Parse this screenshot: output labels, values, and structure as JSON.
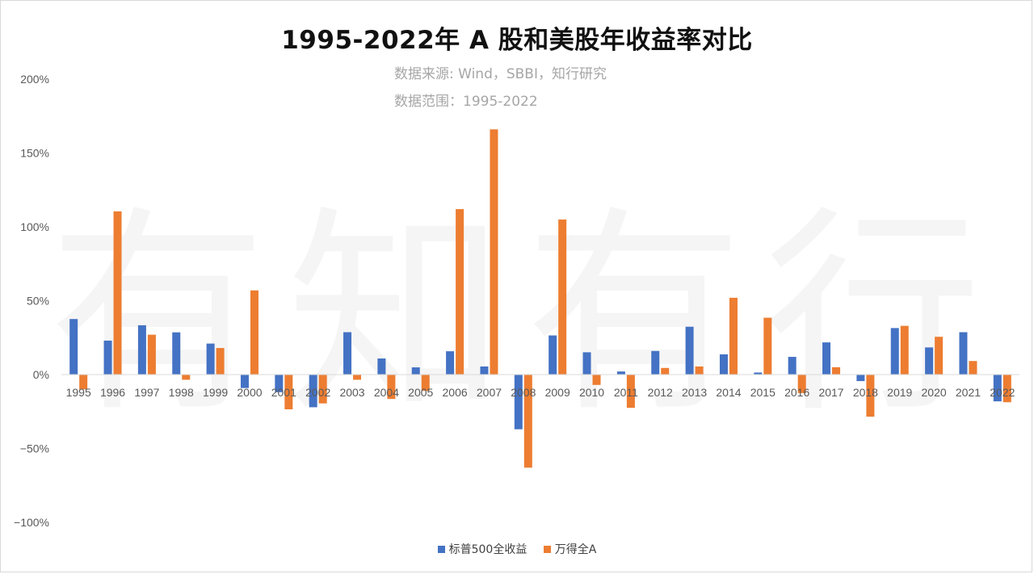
{
  "title": "1995-2022年 A 股和美股年收益率对比",
  "subtitle_source": "数据来源: Wind，SBBI，知行研究",
  "subtitle_range": "数据范围：1995-2022",
  "watermark": "有知有行",
  "colors": {
    "series1": "#4472c4",
    "series2": "#ed7d31",
    "axis": "#d9d9d9",
    "text": "#595959"
  },
  "chart_data": {
    "type": "bar",
    "categories": [
      "1995",
      "1996",
      "1997",
      "1998",
      "1999",
      "2000",
      "2001",
      "2002",
      "2003",
      "2004",
      "2005",
      "2006",
      "2007",
      "2008",
      "2009",
      "2010",
      "2011",
      "2012",
      "2013",
      "2014",
      "2015",
      "2016",
      "2017",
      "2018",
      "2019",
      "2020",
      "2021",
      "2022"
    ],
    "series": [
      {
        "name": "标普500全收益",
        "values": [
          37.6,
          23.0,
          33.4,
          28.6,
          21.0,
          -9.1,
          -11.9,
          -22.1,
          28.7,
          10.9,
          4.9,
          15.8,
          5.5,
          -37.0,
          26.5,
          15.1,
          2.1,
          16.0,
          32.4,
          13.7,
          1.4,
          12.0,
          21.8,
          -4.4,
          31.5,
          18.4,
          28.7,
          -18.1
        ]
      },
      {
        "name": "万得全A",
        "values": [
          -10.0,
          110.5,
          27.0,
          -3.5,
          18.0,
          57.0,
          -23.5,
          -19.5,
          -3.5,
          -16.5,
          -11.0,
          112.0,
          166.0,
          -63.0,
          105.0,
          -7.0,
          -22.5,
          4.5,
          5.5,
          52.0,
          38.5,
          -12.5,
          5.0,
          -28.5,
          33.0,
          25.6,
          9.2,
          -18.7
        ]
      }
    ],
    "y_ticks": [
      "200%",
      "150%",
      "100%",
      "50%",
      "0%",
      "−50%",
      "−100%"
    ],
    "y_tick_values": [
      200,
      150,
      100,
      50,
      0,
      -50,
      -100
    ],
    "ylim": [
      -100,
      200
    ],
    "ylabel": "",
    "xlabel": "",
    "grid": false,
    "legend": "bottom-center"
  }
}
